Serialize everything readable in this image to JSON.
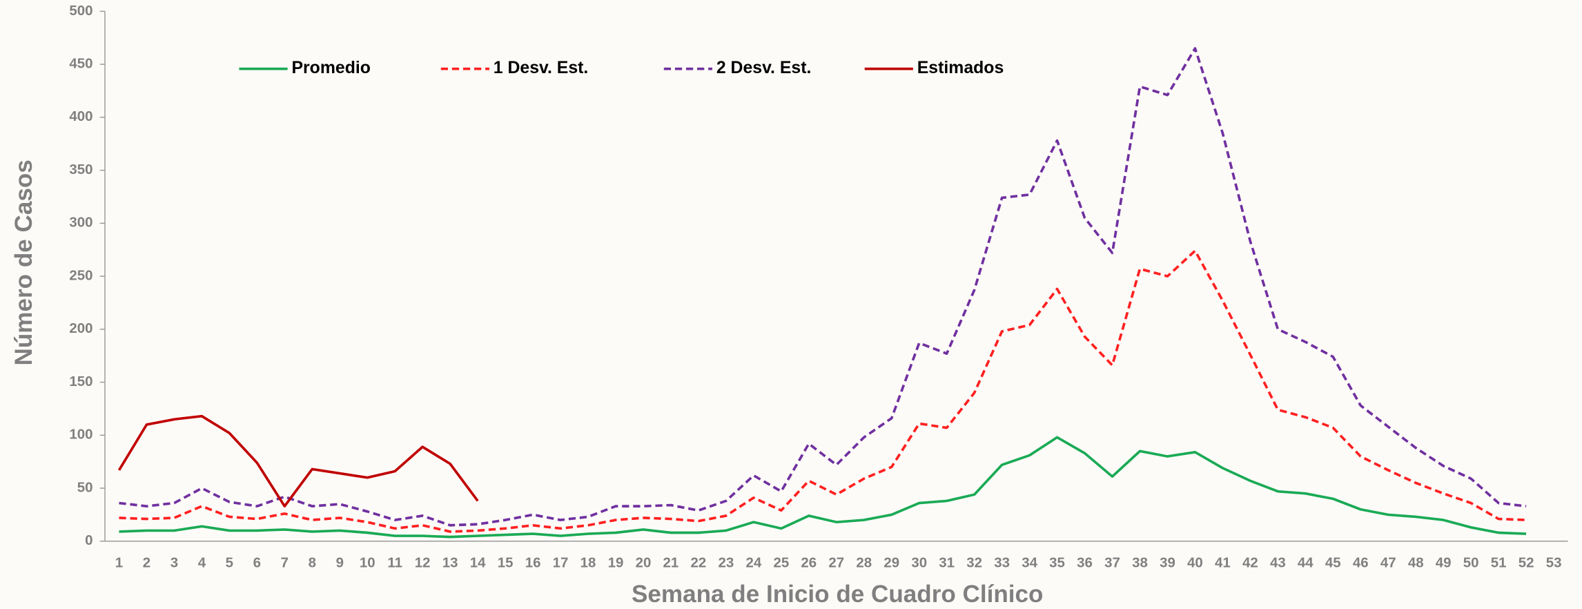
{
  "chart_data": {
    "type": "line",
    "x_label": "Semana de Inicio de Cuadro Clínico",
    "y_label": "Número de Casos",
    "categories": [
      1,
      2,
      3,
      4,
      5,
      6,
      7,
      8,
      9,
      10,
      11,
      12,
      13,
      14,
      15,
      16,
      17,
      18,
      19,
      20,
      21,
      22,
      23,
      24,
      25,
      26,
      27,
      28,
      29,
      30,
      31,
      32,
      33,
      34,
      35,
      36,
      37,
      38,
      39,
      40,
      41,
      42,
      43,
      44,
      45,
      46,
      47,
      48,
      49,
      50,
      51,
      52,
      53
    ],
    "ylim": [
      0,
      500
    ],
    "yticks": [
      0,
      50,
      100,
      150,
      200,
      250,
      300,
      350,
      400,
      450,
      500
    ],
    "series": [
      {
        "name": "Promedio",
        "color": "#1aaa55",
        "dash": false,
        "values": [
          9,
          10,
          10,
          14,
          10,
          10,
          11,
          9,
          10,
          8,
          5,
          5,
          4,
          5,
          6,
          7,
          5,
          7,
          8,
          11,
          8,
          8,
          10,
          18,
          12,
          24,
          18,
          20,
          25,
          36,
          38,
          44,
          72,
          81,
          98,
          83,
          61,
          85,
          80,
          84,
          69,
          57,
          47,
          45,
          40,
          30,
          25,
          23,
          20,
          13,
          8,
          7,
          null
        ]
      },
      {
        "name": "1 Desv. Est.",
        "color": "#ff2020",
        "dash": true,
        "values": [
          22,
          21,
          22,
          33,
          23,
          21,
          26,
          20,
          22,
          18,
          12,
          15,
          9,
          10,
          12,
          15,
          12,
          15,
          20,
          22,
          21,
          19,
          24,
          41,
          29,
          57,
          44,
          59,
          70,
          111,
          107,
          140,
          198,
          204,
          238,
          193,
          166,
          257,
          250,
          274,
          227,
          176,
          124,
          117,
          107,
          80,
          67,
          55,
          45,
          36,
          21,
          20,
          null
        ]
      },
      {
        "name": "2 Desv. Est.",
        "color": "#7030a0",
        "dash": true,
        "values": [
          36,
          33,
          36,
          50,
          37,
          33,
          42,
          33,
          35,
          28,
          20,
          24,
          15,
          16,
          20,
          25,
          20,
          23,
          33,
          33,
          34,
          29,
          38,
          62,
          47,
          92,
          72,
          98,
          116,
          187,
          177,
          237,
          324,
          327,
          378,
          305,
          272,
          429,
          421,
          465,
          385,
          283,
          200,
          188,
          174,
          128,
          108,
          88,
          71,
          59,
          36,
          33,
          null
        ]
      },
      {
        "name": "Estimados",
        "color": "#c00000",
        "dash": false,
        "values": [
          67,
          110,
          115,
          118,
          102,
          74,
          33,
          68,
          64,
          60,
          66,
          89,
          73,
          38,
          null,
          null,
          null,
          null,
          null,
          null,
          null,
          null,
          null,
          null,
          null,
          null,
          null,
          null,
          null,
          null,
          null,
          null,
          null,
          null,
          null,
          null,
          null,
          null,
          null,
          null,
          null,
          null,
          null,
          null,
          null,
          null,
          null,
          null,
          null,
          null,
          null,
          null,
          null
        ]
      }
    ]
  }
}
